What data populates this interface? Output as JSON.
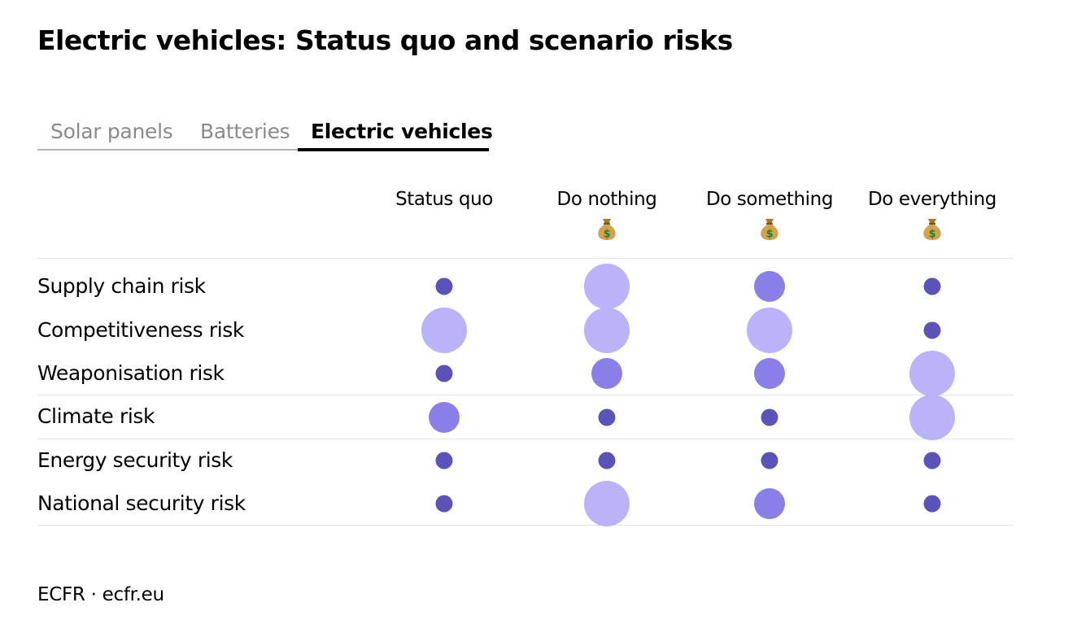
{
  "title": "Electric vehicles: Status quo and scenario risks",
  "tabs": [
    {
      "label": "Solar panels",
      "active": false
    },
    {
      "label": "Batteries",
      "active": false
    },
    {
      "label": "Electric vehicles",
      "active": true
    }
  ],
  "icons": {
    "cost_marker": "money-bag-icon"
  },
  "colors": {
    "small": "#5b53b9",
    "medium": "#8a7fe8",
    "large": "#bab3fa"
  },
  "chart_data": {
    "type": "table",
    "columns": [
      {
        "label": "Status quo",
        "cost_icon": false
      },
      {
        "label": "Do nothing",
        "cost_icon": true
      },
      {
        "label": "Do something",
        "cost_icon": true
      },
      {
        "label": "Do everything",
        "cost_icon": true
      }
    ],
    "rows": [
      {
        "label": "Supply chain risk",
        "levels": [
          "small",
          "large",
          "medium",
          "small"
        ]
      },
      {
        "label": "Competitiveness risk",
        "levels": [
          "large",
          "large",
          "large",
          "small"
        ]
      },
      {
        "label": "Weaponisation risk",
        "levels": [
          "small",
          "medium",
          "medium",
          "large"
        ]
      },
      {
        "label": "Climate risk",
        "levels": [
          "medium",
          "small",
          "small",
          "large"
        ]
      },
      {
        "label": "Energy security risk",
        "levels": [
          "small",
          "small",
          "small",
          "small"
        ]
      },
      {
        "label": "National security risk",
        "levels": [
          "small",
          "large",
          "medium",
          "small"
        ]
      }
    ]
  },
  "source": "ECFR · ecfr.eu"
}
